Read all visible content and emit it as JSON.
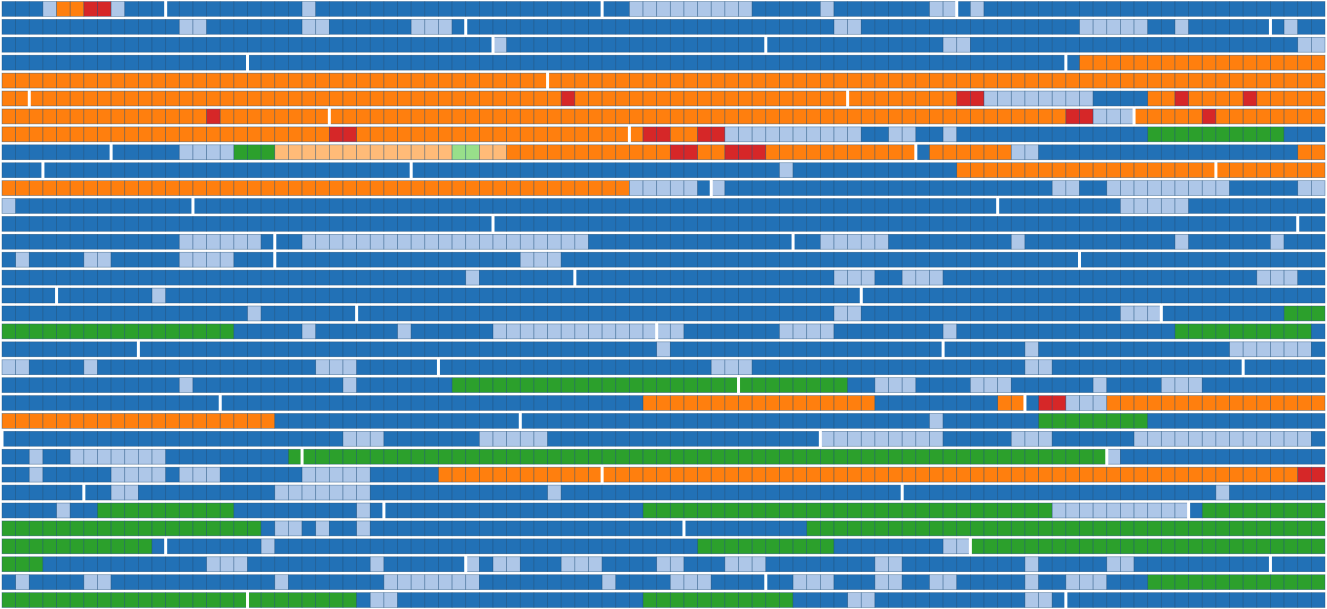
{
  "colors": {
    "dark-blue": "#2271b6",
    "light-blue": "#aec7e8",
    "orange": "#ff7f0e",
    "light-orange": "#ffbb78",
    "red": "#d62728",
    "green": "#2ca02c",
    "light-green": "#98df8a"
  },
  "chart_data": {
    "type": "heatmap",
    "title": "",
    "xlabel": "",
    "ylabel": "",
    "grid": true,
    "legend": "none",
    "col_count": 97,
    "rows": [
      {
        "gaps": [
          12,
          44,
          70
        ],
        "runs": [
          [
            "light-blue",
            3,
            1
          ],
          [
            "orange",
            4,
            2
          ],
          [
            "red",
            6,
            2
          ],
          [
            "light-blue",
            8,
            1
          ],
          [
            "light-blue",
            22,
            1
          ],
          [
            "light-blue",
            46,
            9
          ],
          [
            "light-blue",
            60,
            1
          ],
          [
            "light-blue",
            68,
            2
          ],
          [
            "light-blue",
            71,
            1
          ]
        ]
      },
      {
        "gaps": [
          34,
          93
        ],
        "runs": [
          [
            "light-blue",
            13,
            2
          ],
          [
            "light-blue",
            22,
            2
          ],
          [
            "light-blue",
            30,
            3
          ],
          [
            "light-blue",
            61,
            2
          ],
          [
            "light-blue",
            79,
            5
          ],
          [
            "light-blue",
            86,
            1
          ],
          [
            "light-blue",
            94,
            1
          ]
        ]
      },
      {
        "gaps": [
          36,
          56
        ],
        "runs": [
          [
            "light-blue",
            36,
            1
          ],
          [
            "light-blue",
            69,
            2
          ],
          [
            "light-blue",
            95,
            2
          ]
        ]
      },
      {
        "gaps": [
          18,
          78
        ],
        "runs": [
          [
            "orange",
            79,
            18
          ]
        ]
      },
      {
        "gaps": [
          40
        ],
        "runs": [
          [
            "orange",
            0,
            97
          ]
        ]
      },
      {
        "gaps": [
          2,
          62
        ],
        "runs": [
          [
            "orange",
            0,
            72
          ],
          [
            "red",
            41,
            1
          ],
          [
            "red",
            70,
            2
          ],
          [
            "light-blue",
            72,
            8
          ],
          [
            "orange",
            84,
            13
          ],
          [
            "red",
            86,
            1
          ],
          [
            "red",
            91,
            1
          ]
        ]
      },
      {
        "gaps": [
          24,
          83
        ],
        "runs": [
          [
            "orange",
            0,
            97
          ],
          [
            "red",
            15,
            1
          ],
          [
            "red",
            78,
            2
          ],
          [
            "light-blue",
            80,
            3
          ],
          [
            "red",
            88,
            1
          ]
        ]
      },
      {
        "gaps": [
          46
        ],
        "runs": [
          [
            "orange",
            0,
            53
          ],
          [
            "red",
            24,
            2
          ],
          [
            "red",
            47,
            2
          ],
          [
            "red",
            51,
            2
          ],
          [
            "light-blue",
            53,
            10
          ],
          [
            "light-blue",
            65,
            2
          ],
          [
            "light-blue",
            69,
            1
          ],
          [
            "green",
            84,
            10
          ]
        ]
      },
      {
        "gaps": [
          8,
          67
        ],
        "runs": [
          [
            "light-blue",
            13,
            4
          ],
          [
            "green",
            17,
            3
          ],
          [
            "light-orange",
            20,
            13
          ],
          [
            "light-green",
            33,
            2
          ],
          [
            "light-orange",
            35,
            2
          ],
          [
            "orange",
            37,
            30
          ],
          [
            "red",
            49,
            2
          ],
          [
            "red",
            53,
            3
          ],
          [
            "orange",
            68,
            7
          ],
          [
            "light-blue",
            74,
            2
          ],
          [
            "orange",
            95,
            2
          ]
        ]
      },
      {
        "gaps": [
          3,
          30,
          89
        ],
        "runs": [
          [
            "light-blue",
            57,
            1
          ],
          [
            "orange",
            70,
            27
          ]
        ]
      },
      {
        "gaps": [
          52
        ],
        "runs": [
          [
            "orange",
            0,
            46
          ],
          [
            "light-blue",
            46,
            5
          ],
          [
            "light-blue",
            52,
            1
          ],
          [
            "light-blue",
            77,
            2
          ],
          [
            "light-blue",
            81,
            9
          ],
          [
            "light-blue",
            95,
            2
          ]
        ]
      },
      {
        "gaps": [
          14,
          73
        ],
        "runs": [
          [
            "light-blue",
            0,
            1
          ],
          [
            "light-blue",
            82,
            5
          ]
        ]
      },
      {
        "gaps": [
          36,
          95
        ],
        "runs": []
      },
      {
        "gaps": [
          20,
          58
        ],
        "runs": [
          [
            "light-blue",
            13,
            6
          ],
          [
            "light-blue",
            22,
            21
          ],
          [
            "light-blue",
            60,
            5
          ],
          [
            "light-blue",
            74,
            1
          ],
          [
            "light-blue",
            86,
            1
          ],
          [
            "light-blue",
            93,
            1
          ]
        ]
      },
      {
        "gaps": [
          20,
          79
        ],
        "runs": [
          [
            "light-blue",
            1,
            1
          ],
          [
            "light-blue",
            6,
            2
          ],
          [
            "light-blue",
            13,
            4
          ],
          [
            "light-blue",
            38,
            3
          ]
        ]
      },
      {
        "gaps": [
          42
        ],
        "runs": [
          [
            "light-blue",
            34,
            1
          ],
          [
            "light-blue",
            61,
            3
          ],
          [
            "light-blue",
            66,
            3
          ],
          [
            "light-blue",
            92,
            3
          ]
        ]
      },
      {
        "gaps": [
          4,
          63
        ],
        "runs": [
          [
            "light-blue",
            11,
            1
          ]
        ]
      },
      {
        "gaps": [
          26,
          85
        ],
        "runs": [
          [
            "light-blue",
            18,
            1
          ],
          [
            "light-blue",
            61,
            2
          ],
          [
            "light-blue",
            82,
            3
          ],
          [
            "green",
            94,
            3
          ]
        ]
      },
      {
        "gaps": [
          48
        ],
        "runs": [
          [
            "green",
            0,
            17
          ],
          [
            "light-blue",
            22,
            1
          ],
          [
            "light-blue",
            29,
            1
          ],
          [
            "light-blue",
            36,
            12
          ],
          [
            "light-blue",
            48,
            2
          ],
          [
            "light-blue",
            57,
            4
          ],
          [
            "light-blue",
            69,
            1
          ],
          [
            "green",
            86,
            10
          ]
        ]
      },
      {
        "gaps": [
          10,
          69
        ],
        "runs": [
          [
            "light-blue",
            48,
            1
          ],
          [
            "light-blue",
            75,
            1
          ],
          [
            "light-blue",
            90,
            6
          ]
        ]
      },
      {
        "gaps": [
          32,
          91
        ],
        "runs": [
          [
            "light-blue",
            0,
            2
          ],
          [
            "light-blue",
            6,
            1
          ],
          [
            "light-blue",
            23,
            3
          ],
          [
            "light-blue",
            52,
            3
          ],
          [
            "light-blue",
            75,
            2
          ]
        ]
      },
      {
        "gaps": [
          54
        ],
        "runs": [
          [
            "light-blue",
            13,
            1
          ],
          [
            "light-blue",
            25,
            1
          ],
          [
            "green",
            33,
            21
          ],
          [
            "green",
            54,
            8
          ],
          [
            "light-blue",
            64,
            3
          ],
          [
            "light-blue",
            71,
            3
          ],
          [
            "light-blue",
            80,
            1
          ],
          [
            "light-blue",
            85,
            3
          ]
        ]
      },
      {
        "gaps": [
          16,
          75
        ],
        "runs": [
          [
            "orange",
            47,
            17
          ],
          [
            "orange",
            73,
            2
          ],
          [
            "red",
            76,
            2
          ],
          [
            "light-blue",
            78,
            3
          ],
          [
            "orange",
            81,
            16
          ]
        ]
      },
      {
        "gaps": [
          38
        ],
        "runs": [
          [
            "orange",
            0,
            20
          ],
          [
            "light-blue",
            68,
            1
          ],
          [
            "green",
            76,
            8
          ]
        ]
      },
      {
        "gaps": [
          0,
          60
        ],
        "runs": [
          [
            "light-blue",
            25,
            3
          ],
          [
            "light-blue",
            35,
            5
          ],
          [
            "light-blue",
            60,
            9
          ],
          [
            "light-blue",
            74,
            3
          ],
          [
            "light-blue",
            83,
            13
          ]
        ]
      },
      {
        "gaps": [
          22,
          81
        ],
        "runs": [
          [
            "light-blue",
            2,
            1
          ],
          [
            "light-blue",
            5,
            7
          ],
          [
            "green",
            21,
            1
          ],
          [
            "green",
            22,
            59
          ],
          [
            "light-blue",
            81,
            1
          ]
        ]
      },
      {
        "gaps": [
          44
        ],
        "runs": [
          [
            "light-blue",
            2,
            1
          ],
          [
            "light-blue",
            8,
            4
          ],
          [
            "light-blue",
            13,
            3
          ],
          [
            "light-blue",
            22,
            3
          ],
          [
            "light-blue",
            25,
            2
          ],
          [
            "orange",
            32,
            12
          ],
          [
            "orange",
            44,
            51
          ],
          [
            "red",
            95,
            2
          ]
        ]
      },
      {
        "gaps": [
          6,
          66
        ],
        "runs": [
          [
            "light-blue",
            8,
            2
          ],
          [
            "light-blue",
            20,
            7
          ],
          [
            "light-blue",
            40,
            1
          ],
          [
            "light-blue",
            89,
            1
          ]
        ]
      },
      {
        "gaps": [
          28,
          87
        ],
        "runs": [
          [
            "light-blue",
            4,
            1
          ],
          [
            "green",
            7,
            10
          ],
          [
            "light-blue",
            26,
            1
          ],
          [
            "green",
            47,
            30
          ],
          [
            "light-blue",
            77,
            10
          ],
          [
            "green",
            88,
            9
          ]
        ]
      },
      {
        "gaps": [
          50
        ],
        "runs": [
          [
            "green",
            0,
            19
          ],
          [
            "light-blue",
            20,
            2
          ],
          [
            "light-blue",
            23,
            1
          ],
          [
            "light-blue",
            26,
            1
          ],
          [
            "green",
            59,
            38
          ]
        ]
      },
      {
        "gaps": [
          12,
          71
        ],
        "runs": [
          [
            "green",
            0,
            11
          ],
          [
            "light-blue",
            19,
            1
          ],
          [
            "green",
            51,
            10
          ],
          [
            "light-blue",
            69,
            2
          ],
          [
            "green",
            71,
            1
          ],
          [
            "green",
            72,
            25
          ]
        ]
      },
      {
        "gaps": [
          34,
          93
        ],
        "runs": [
          [
            "green",
            0,
            3
          ],
          [
            "light-blue",
            15,
            3
          ],
          [
            "light-blue",
            27,
            1
          ],
          [
            "light-blue",
            34,
            1
          ],
          [
            "light-blue",
            36,
            2
          ],
          [
            "light-blue",
            41,
            3
          ],
          [
            "light-blue",
            48,
            2
          ],
          [
            "light-blue",
            53,
            3
          ],
          [
            "light-blue",
            64,
            2
          ],
          [
            "light-blue",
            75,
            1
          ],
          [
            "light-blue",
            81,
            2
          ]
        ]
      },
      {
        "gaps": [
          56
        ],
        "runs": [
          [
            "light-blue",
            1,
            1
          ],
          [
            "light-blue",
            6,
            2
          ],
          [
            "light-blue",
            20,
            1
          ],
          [
            "light-blue",
            28,
            7
          ],
          [
            "light-blue",
            44,
            1
          ],
          [
            "light-blue",
            49,
            3
          ],
          [
            "light-blue",
            58,
            3
          ],
          [
            "light-blue",
            64,
            2
          ],
          [
            "light-blue",
            68,
            2
          ],
          [
            "light-blue",
            75,
            1
          ],
          [
            "light-blue",
            78,
            3
          ],
          [
            "green",
            84,
            13
          ]
        ]
      },
      {
        "gaps": [
          18,
          78
        ],
        "runs": [
          [
            "green",
            0,
            18
          ],
          [
            "green",
            18,
            8
          ],
          [
            "light-blue",
            27,
            2
          ],
          [
            "green",
            47,
            11
          ],
          [
            "light-blue",
            62,
            2
          ],
          [
            "light-blue",
            75,
            2
          ]
        ]
      }
    ]
  }
}
